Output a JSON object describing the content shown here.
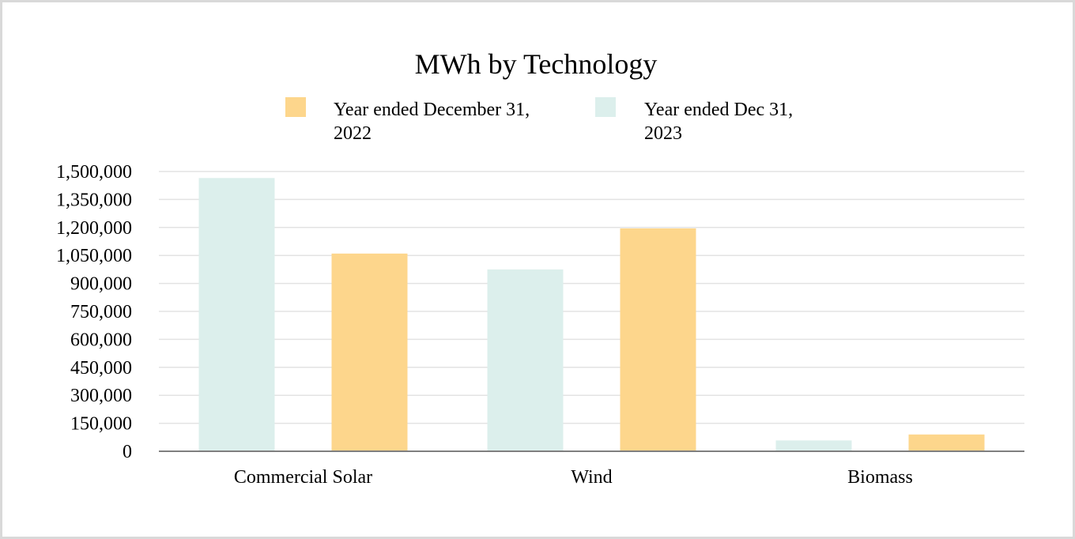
{
  "chart_data": {
    "type": "bar",
    "title": "MWh by Technology",
    "xlabel": "",
    "ylabel": "",
    "categories": [
      "Commercial Solar",
      "Wind",
      "Biomass"
    ],
    "series": [
      {
        "name_lines": [
          "Year ended Dec 31,",
          "2023"
        ],
        "values": [
          1465000,
          975000,
          58000
        ],
        "color": "#dcefec"
      },
      {
        "name_lines": [
          "Year ended December 31,",
          "2022"
        ],
        "values": [
          1060000,
          1195000,
          90000
        ],
        "color": "#fdd68c"
      }
    ],
    "legend_order": [
      1,
      0
    ],
    "ylim": [
      0,
      1500000
    ],
    "yticks": [
      "0",
      "150,000",
      "300,000",
      "450,000",
      "600,000",
      "750,000",
      "900,000",
      "1,050,000",
      "1,200,000",
      "1,350,000",
      "1,500,000"
    ],
    "grid": true,
    "legend_position": "top"
  }
}
